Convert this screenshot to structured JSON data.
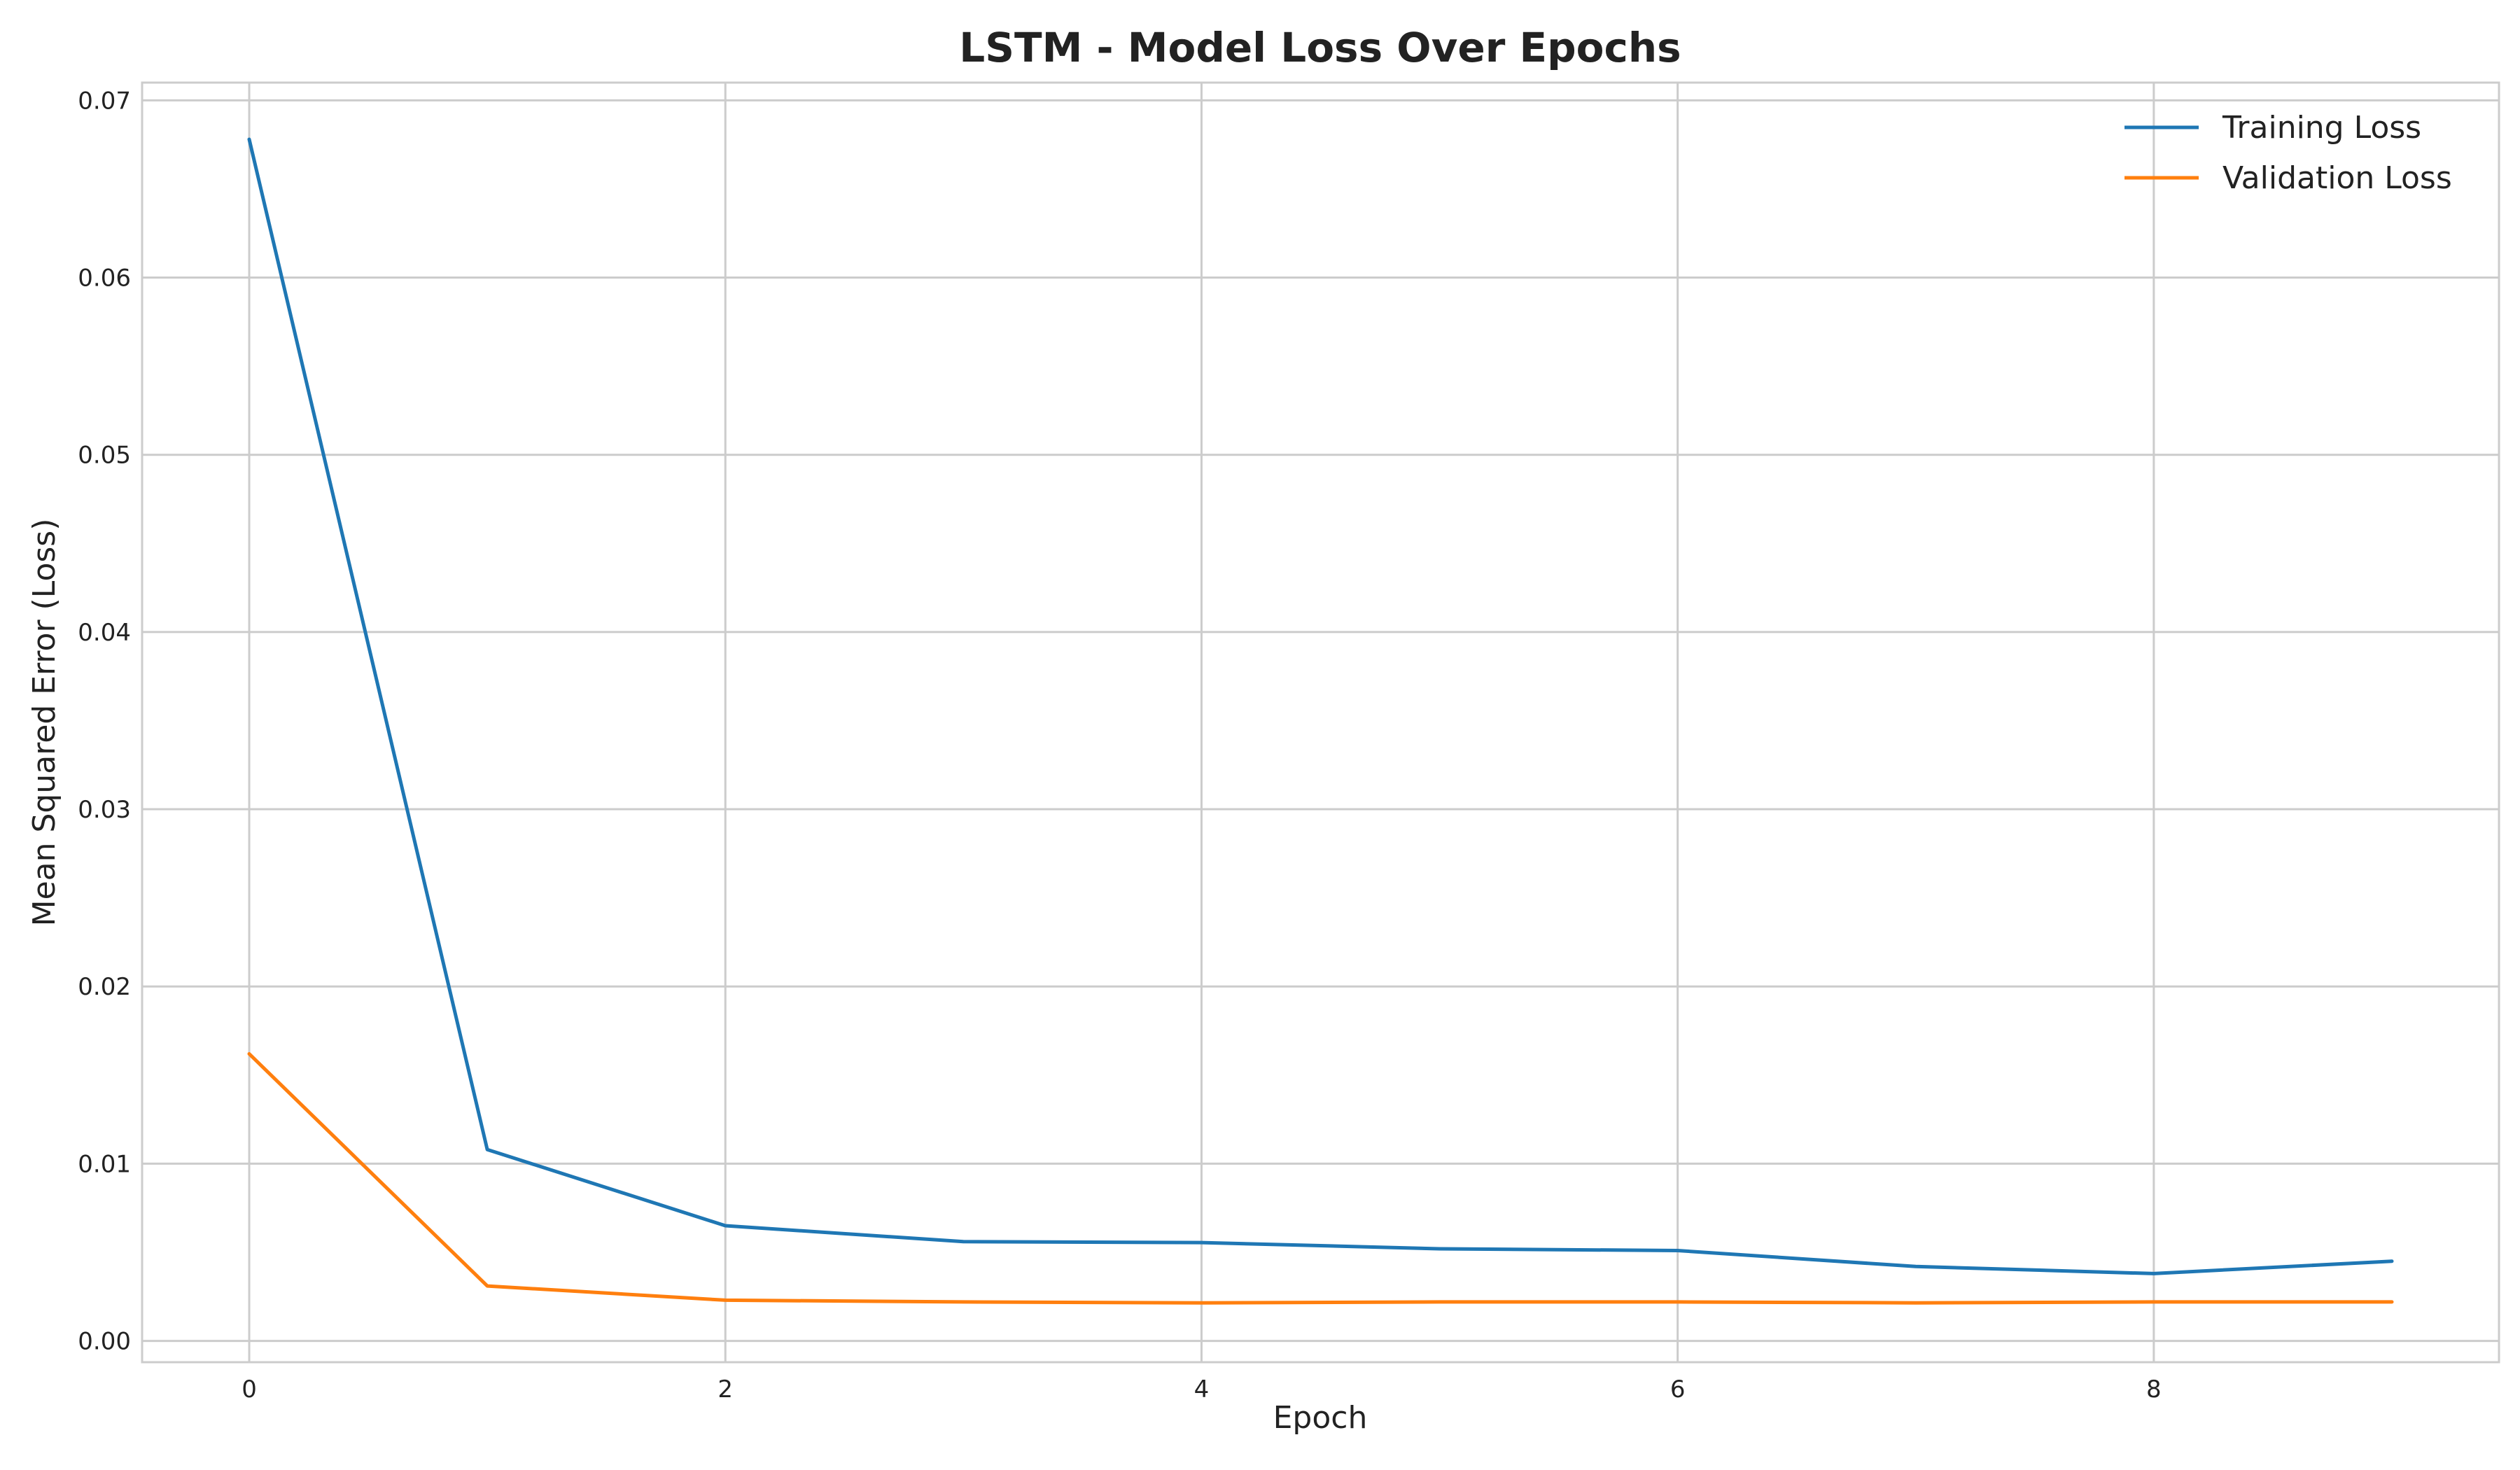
{
  "chart_data": {
    "type": "line",
    "title": "LSTM - Model Loss Over Epochs",
    "xlabel": "Epoch",
    "ylabel": "Mean Squared Error (Loss)",
    "x": [
      0,
      1,
      2,
      3,
      4,
      5,
      6,
      7,
      8,
      9
    ],
    "xlim": [
      -0.45,
      9.45
    ],
    "ylim": [
      -0.0012,
      0.071
    ],
    "xticks": [
      0,
      2,
      4,
      6,
      8
    ],
    "xtick_labels": [
      "0",
      "2",
      "4",
      "6",
      "8"
    ],
    "yticks": [
      0.0,
      0.01,
      0.02,
      0.03,
      0.04,
      0.05,
      0.06,
      0.07
    ],
    "ytick_labels": [
      "0.00",
      "0.01",
      "0.02",
      "0.03",
      "0.04",
      "0.05",
      "0.06",
      "0.07"
    ],
    "grid": true,
    "legend_position": "top-right",
    "series": [
      {
        "name": "Training Loss",
        "color": "#1f77b4",
        "values": [
          0.0678,
          0.0108,
          0.0065,
          0.0056,
          0.00555,
          0.0052,
          0.0051,
          0.0042,
          0.0038,
          0.0045
        ]
      },
      {
        "name": "Validation Loss",
        "color": "#ff7f0e",
        "values": [
          0.0162,
          0.0031,
          0.0023,
          0.0022,
          0.00215,
          0.0022,
          0.0022,
          0.00215,
          0.0022,
          0.0022
        ]
      }
    ]
  }
}
